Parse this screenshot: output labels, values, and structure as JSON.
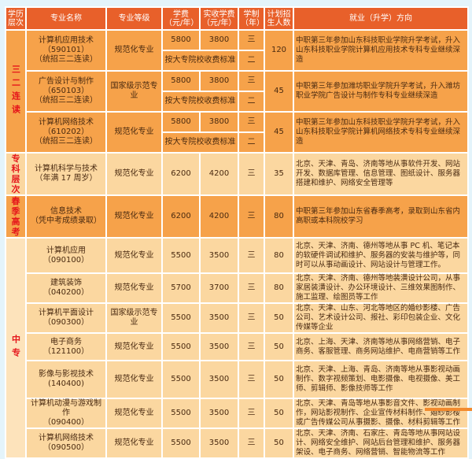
{
  "header": [
    "学历层次",
    "专业名称",
    "专业等级",
    "学费（元/年）",
    "实收学费（元/年）",
    "学制（年）",
    "计划招生人数",
    "就业（升学）方向"
  ],
  "levels": {
    "sanerlian": "三二连读",
    "zhuanke": "专科层次",
    "chunji": "春季高考",
    "zhongzhuan": "中专"
  },
  "std_fee": "按大专院校收费标准",
  "sanerlian_rows": [
    {
      "name": "计算机应用技术",
      "code": "（590101）",
      "note": "（统招三二连读）",
      "grade": "规范化专业",
      "fee": "5800",
      "actual": "3800",
      "years1": "三",
      "years2": "二",
      "count": "120",
      "direction": "中职第三年参加山东科技职业学院升学考试，升入山东科技职业学院计算机应用技术专科专业继续深造"
    },
    {
      "name": "广告设计与制作",
      "code": "（650103）",
      "note": "（统招三二连读）",
      "grade": "国家级示范专业",
      "fee": "5800",
      "actual": "3800",
      "years1": "三",
      "years2": "二",
      "count": "45",
      "direction": "中职第三年参加潍坊职业学院升学考试，升入潍坊职业学院广告设计与制作专科专业继续深造"
    },
    {
      "name": "计算机网络技术",
      "code": "（610202）",
      "note": "（统招三二连读）",
      "grade": "规范化专业",
      "fee": "5800",
      "actual": "3800",
      "years1": "三",
      "years2": "二",
      "count": "45",
      "direction": "中职第三年参加山东科技职业学院升学考试，升入山东科技职业学院计算机网络技术专科专业继续深造"
    }
  ],
  "zhuanke_row": {
    "name": "计算机科学与技术",
    "note": "（年满 17 周岁）",
    "grade": "规范化专业",
    "fee": "6200",
    "actual": "4200",
    "years": "三",
    "count": "35",
    "direction": "北京、天津、青岛、济南等地从事软件开发、网站开发、数据库管理、信息管理、图纸设计、服务器搭建和维护、网络安全管理等"
  },
  "chunji_row": {
    "name": "信息技术",
    "note": "（凭中考成绩录取）",
    "grade": "规范化专业",
    "fee": "6200",
    "actual": "4200",
    "years": "三",
    "count": "80",
    "direction": "中职第三年参加山东省春季高考，录取到山东省内高职或本科院校学习"
  },
  "zhongzhuan_rows": [
    {
      "name": "计算机应用",
      "code": "（090100）",
      "grade": "规范化专业",
      "fee": "5500",
      "actual": "3500",
      "years": "三",
      "count": "80",
      "direction": "北京、天津、济南、德州等地从事 PC 机、笔记本的软硬件调试和维护、服务器的安装与维护等，同时可以从事动画设计、网站设计与管理工作。"
    },
    {
      "name": "建筑装饰",
      "code": "（040200）",
      "grade": "规范化专业",
      "fee": "5700",
      "actual": "3700",
      "years": "三",
      "count": "80",
      "direction": "北京、天津、济南、德州等地装潢设计公司，从事家居装潢设计、办公环境设计、三维效果图制作、施工监理、绘图员等工作"
    },
    {
      "name": "计算机平面设计",
      "code": "（090300）",
      "grade": "国家级示范专业",
      "fee": "5500",
      "actual": "3500",
      "years": "三",
      "count": "50",
      "direction": "北京、天津、山东、河北等地区的婚纱影楼、广告公司、艺术设计公司、报社、彩印包装企业、文化传媒等企业"
    },
    {
      "name": "电子商务",
      "code": "（121100）",
      "grade": "规范化专业",
      "fee": "5500",
      "actual": "3500",
      "years": "三",
      "count": "50",
      "direction": "北京、上海、天津、济南等地从事网络营销、电子商务、客服管理、商务网站维护、电商营销等工作"
    },
    {
      "name": "影像与影视技术",
      "code": "(140400)",
      "grade": "规范化专业",
      "fee": "5500",
      "actual": "3500",
      "years": "三",
      "count": "50",
      "direction": "北京、天津、上海、青岛、济南等地从事影视动画制作、数字视频策划、电影摄像、电视摄像、美工师、剪辑师、影像技师等工作"
    },
    {
      "name": "计算机动漫与游戏制作",
      "code": "（090400）",
      "grade": "规范化专业",
      "fee": "5500",
      "actual": "3500",
      "years": "三",
      "count": "50",
      "direction": "北京、天津、青岛等地从事影音文件、影视动画制作，网站影视制作、企业宣传材料制作、婚纱影楼或广告传媒公司从事摄影、摄像、材料剪辑等工作"
    },
    {
      "name": "计算机网络技术",
      "code": "（090500）",
      "grade": "规范化专业",
      "fee": "5500",
      "actual": "3500",
      "years": "三",
      "count": "50",
      "direction": "北京、天津、济南、石家庄、青岛等地从事网站设计、网络安全维护、网站后台管理和维护、服务器架设、电子商务、网络营销、智能物流等工作"
    }
  ]
}
